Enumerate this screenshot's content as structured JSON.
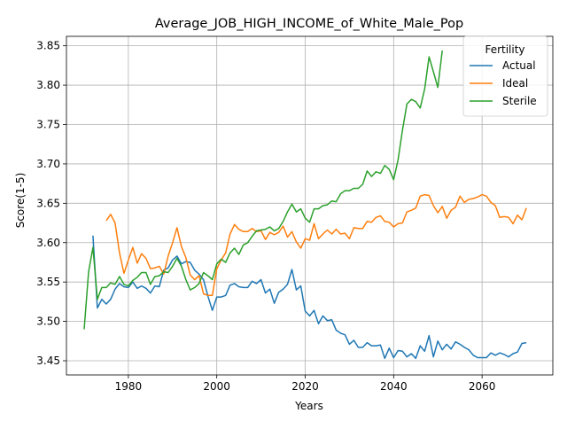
{
  "chart_data": {
    "type": "line",
    "title": "Average_JOB_HIGH_INCOME_of_White_Male_Pop",
    "xlabel": "Years",
    "ylabel": "Score(1-5)",
    "xlim": [
      1966,
      2076
    ],
    "ylim": [
      3.432,
      3.862
    ],
    "xticks": [
      1980,
      2000,
      2020,
      2040,
      2060
    ],
    "yticks": [
      3.45,
      3.5,
      3.55,
      3.6,
      3.65,
      3.7,
      3.75,
      3.8,
      3.85
    ],
    "ytick_labels": [
      "3.45",
      "3.50",
      "3.55",
      "3.60",
      "3.65",
      "3.70",
      "3.75",
      "3.80",
      "3.85"
    ],
    "grid": true,
    "legend": {
      "title": "Fertility",
      "position": "top-right"
    },
    "series": [
      {
        "name": "Actual",
        "color": "#1f77b4",
        "x": [
          1972,
          1973,
          1974,
          1975,
          1976,
          1977,
          1978,
          1979,
          1980,
          1981,
          1982,
          1983,
          1984,
          1985,
          1986,
          1987,
          1988,
          1989,
          1990,
          1991,
          1992,
          1993,
          1994,
          1995,
          1996,
          1997,
          1998,
          1999,
          2000,
          2001,
          2002,
          2003,
          2004,
          2005,
          2006,
          2007,
          2008,
          2009,
          2010,
          2011,
          2012,
          2013,
          2014,
          2015,
          2016,
          2017,
          2018,
          2019,
          2020,
          2021,
          2022,
          2023,
          2024,
          2025,
          2026,
          2027,
          2028,
          2029,
          2030,
          2031,
          2032,
          2033,
          2034,
          2035,
          2036,
          2037,
          2038,
          2039,
          2040,
          2041,
          2042,
          2043,
          2044,
          2045,
          2046,
          2047,
          2048,
          2049,
          2050,
          2051,
          2052,
          2053,
          2054,
          2055,
          2056,
          2057,
          2058,
          2059,
          2060,
          2061,
          2062,
          2063,
          2064,
          2065,
          2066,
          2067,
          2068,
          2069,
          2070
        ],
        "values": [
          3.609,
          3.517,
          3.528,
          3.522,
          3.528,
          3.541,
          3.548,
          3.544,
          3.543,
          3.55,
          3.542,
          3.545,
          3.542,
          3.536,
          3.545,
          3.544,
          3.565,
          3.568,
          3.578,
          3.583,
          3.573,
          3.576,
          3.575,
          3.565,
          3.56,
          3.553,
          3.532,
          3.514,
          3.531,
          3.531,
          3.533,
          3.546,
          3.548,
          3.544,
          3.543,
          3.543,
          3.551,
          3.548,
          3.553,
          3.536,
          3.541,
          3.523,
          3.537,
          3.541,
          3.547,
          3.566,
          3.54,
          3.545,
          3.513,
          3.507,
          3.514,
          3.497,
          3.507,
          3.501,
          3.502,
          3.489,
          3.485,
          3.483,
          3.471,
          3.476,
          3.467,
          3.467,
          3.473,
          3.469,
          3.469,
          3.47,
          3.453,
          3.466,
          3.454,
          3.463,
          3.462,
          3.455,
          3.459,
          3.453,
          3.469,
          3.462,
          3.482,
          3.455,
          3.475,
          3.464,
          3.471,
          3.465,
          3.474,
          3.471,
          3.467,
          3.464,
          3.457,
          3.454,
          3.454,
          3.454,
          3.46,
          3.457,
          3.46,
          3.458,
          3.455,
          3.459,
          3.461,
          3.472,
          3.473
        ]
      },
      {
        "name": "Ideal",
        "color": "#ff7f0e",
        "x": [
          1975,
          1976,
          1977,
          1978,
          1979,
          1980,
          1981,
          1982,
          1983,
          1984,
          1985,
          1986,
          1987,
          1988,
          1989,
          1990,
          1991,
          1992,
          1993,
          1994,
          1995,
          1996,
          1997,
          1998,
          1999,
          2000,
          2001,
          2002,
          2003,
          2004,
          2005,
          2006,
          2007,
          2008,
          2009,
          2010,
          2011,
          2012,
          2013,
          2014,
          2015,
          2016,
          2017,
          2018,
          2019,
          2020,
          2021,
          2022,
          2023,
          2024,
          2025,
          2026,
          2027,
          2028,
          2029,
          2030,
          2031,
          2032,
          2033,
          2034,
          2035,
          2036,
          2037,
          2038,
          2039,
          2040,
          2041,
          2042,
          2043,
          2044,
          2045,
          2046,
          2047,
          2048,
          2049,
          2050,
          2051,
          2052,
          2053,
          2054,
          2055,
          2056,
          2057,
          2058,
          2059,
          2060,
          2061,
          2062,
          2063,
          2064,
          2065,
          2066,
          2067,
          2068,
          2069,
          2070
        ],
        "values": [
          3.628,
          3.636,
          3.625,
          3.587,
          3.561,
          3.578,
          3.594,
          3.574,
          3.586,
          3.58,
          3.567,
          3.568,
          3.57,
          3.56,
          3.583,
          3.6,
          3.619,
          3.595,
          3.581,
          3.559,
          3.553,
          3.558,
          3.535,
          3.533,
          3.533,
          3.567,
          3.578,
          3.587,
          3.611,
          3.623,
          3.617,
          3.614,
          3.614,
          3.618,
          3.614,
          3.615,
          3.604,
          3.613,
          3.61,
          3.613,
          3.621,
          3.607,
          3.614,
          3.601,
          3.593,
          3.605,
          3.603,
          3.624,
          3.605,
          3.611,
          3.616,
          3.611,
          3.617,
          3.611,
          3.612,
          3.605,
          3.619,
          3.618,
          3.618,
          3.627,
          3.626,
          3.632,
          3.634,
          3.627,
          3.626,
          3.62,
          3.624,
          3.625,
          3.639,
          3.641,
          3.644,
          3.659,
          3.661,
          3.66,
          3.647,
          3.638,
          3.646,
          3.631,
          3.641,
          3.645,
          3.659,
          3.651,
          3.655,
          3.656,
          3.658,
          3.661,
          3.659,
          3.651,
          3.647,
          3.632,
          3.633,
          3.632,
          3.624,
          3.635,
          3.629,
          3.644
        ]
      },
      {
        "name": "Sterile",
        "color": "#2ca02c",
        "x": [
          1970,
          1971,
          1972,
          1973,
          1974,
          1975,
          1976,
          1977,
          1978,
          1979,
          1980,
          1981,
          1982,
          1983,
          1984,
          1985,
          1986,
          1987,
          1988,
          1989,
          1990,
          1991,
          1992,
          1993,
          1994,
          1995,
          1996,
          1997,
          1998,
          1999,
          2000,
          2001,
          2002,
          2003,
          2004,
          2005,
          2006,
          2007,
          2008,
          2009,
          2010,
          2011,
          2012,
          2013,
          2014,
          2015,
          2016,
          2017,
          2018,
          2019,
          2020,
          2021,
          2022,
          2023,
          2024,
          2025,
          2026,
          2027,
          2028,
          2029,
          2030,
          2031,
          2032,
          2033,
          2034,
          2035,
          2036,
          2037,
          2038,
          2039,
          2040,
          2041,
          2042,
          2043,
          2044,
          2045,
          2046,
          2047,
          2048,
          2049,
          2050,
          2051
        ],
        "values": [
          3.49,
          3.563,
          3.594,
          3.528,
          3.543,
          3.543,
          3.549,
          3.547,
          3.557,
          3.547,
          3.545,
          3.552,
          3.556,
          3.562,
          3.562,
          3.547,
          3.557,
          3.558,
          3.563,
          3.562,
          3.57,
          3.58,
          3.57,
          3.553,
          3.54,
          3.543,
          3.548,
          3.562,
          3.558,
          3.553,
          3.573,
          3.579,
          3.575,
          3.587,
          3.593,
          3.585,
          3.597,
          3.6,
          3.608,
          3.615,
          3.616,
          3.617,
          3.62,
          3.615,
          3.618,
          3.627,
          3.639,
          3.649,
          3.639,
          3.643,
          3.631,
          3.626,
          3.643,
          3.643,
          3.647,
          3.648,
          3.653,
          3.652,
          3.662,
          3.666,
          3.666,
          3.669,
          3.669,
          3.674,
          3.691,
          3.684,
          3.69,
          3.688,
          3.698,
          3.693,
          3.68,
          3.705,
          3.743,
          3.776,
          3.782,
          3.779,
          3.771,
          3.795,
          3.836,
          3.817,
          3.797,
          3.844
        ]
      }
    ]
  }
}
